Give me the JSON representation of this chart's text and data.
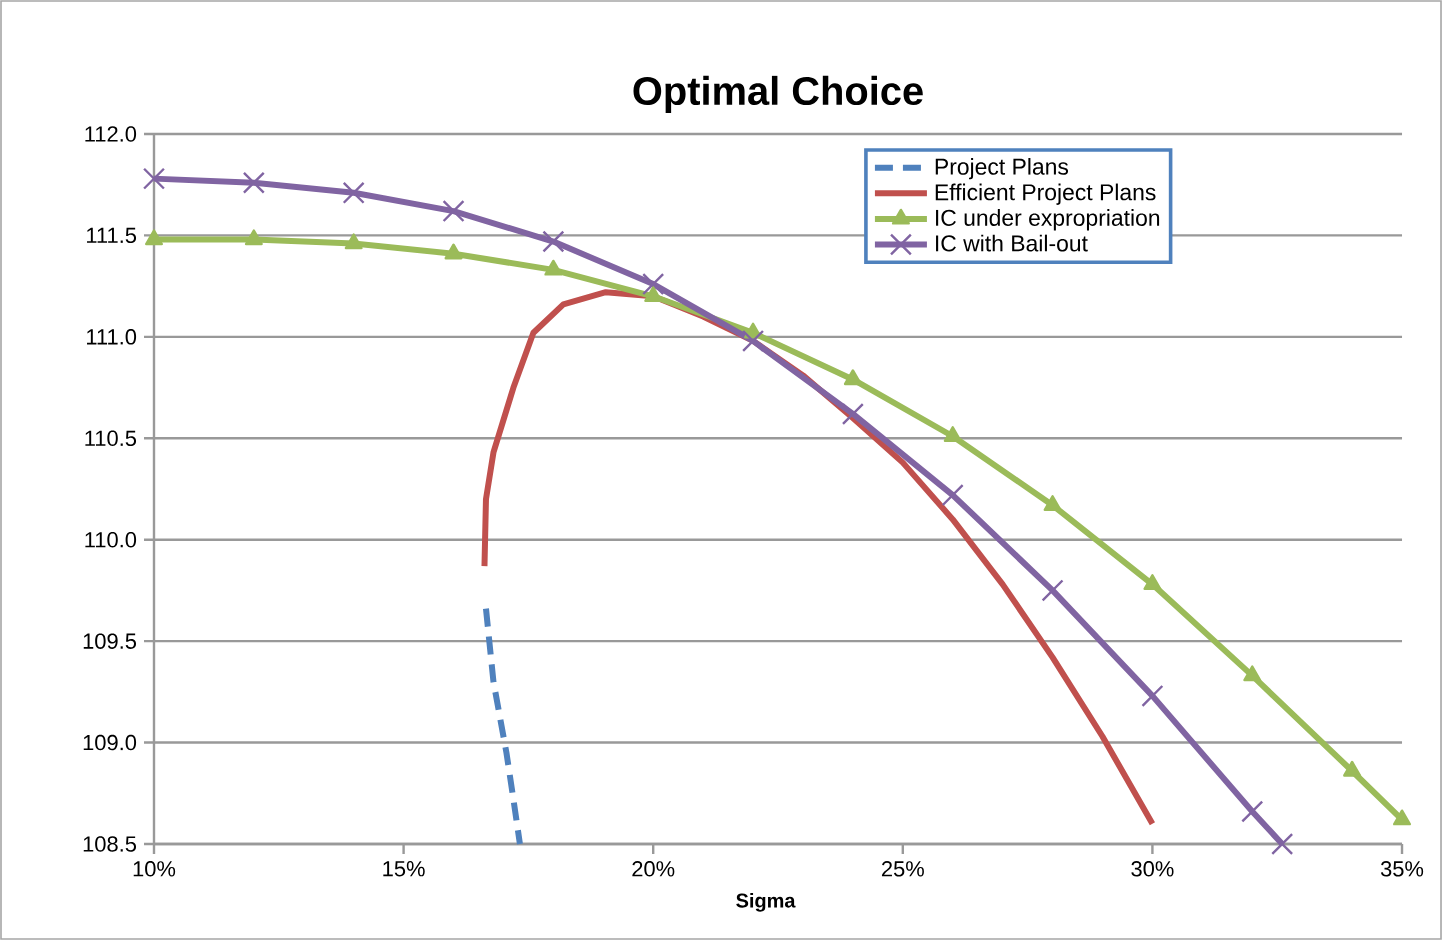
{
  "chart_data": {
    "type": "line",
    "title": "Optimal Choice",
    "xlabel": "Sigma",
    "xlim": [
      10,
      35
    ],
    "ylim": [
      108.5,
      112
    ],
    "xticks": [
      {
        "value": 10,
        "label": "10%"
      },
      {
        "value": 15,
        "label": "15%"
      },
      {
        "value": 20,
        "label": "20%"
      },
      {
        "value": 25,
        "label": "25%"
      },
      {
        "value": 30,
        "label": "30%"
      },
      {
        "value": 35,
        "label": "35%"
      }
    ],
    "yticks": [
      {
        "value": 108.5,
        "label": "108.5"
      },
      {
        "value": 109,
        "label": "109.0"
      },
      {
        "value": 109.5,
        "label": "109.5"
      },
      {
        "value": 110,
        "label": "110.0"
      },
      {
        "value": 110.5,
        "label": "110.5"
      },
      {
        "value": 111,
        "label": "111.0"
      },
      {
        "value": 111.5,
        "label": "111.5"
      },
      {
        "value": 112,
        "label": "112.0"
      }
    ],
    "grid": "y",
    "legend": "top right",
    "series": [
      {
        "name": "Project Plans",
        "color": "#4f81bd",
        "line_style": "dashed",
        "marker": "none",
        "x": [
          16.65,
          16.8,
          17.06,
          17.2,
          17.33
        ],
        "values": [
          109.66,
          109.3,
          108.95,
          108.72,
          108.5
        ]
      },
      {
        "name": "Efficient Project Plans",
        "color": "#c0504d",
        "line_style": "solid",
        "marker": "none",
        "x": [
          16.62,
          16.65,
          16.8,
          17.2,
          17.6,
          18.2,
          19.05,
          20,
          21,
          22,
          23,
          24,
          25,
          26,
          27,
          28,
          29,
          30
        ],
        "values": [
          109.87,
          110.2,
          110.43,
          110.75,
          111.02,
          111.16,
          111.22,
          111.2,
          111.1,
          110.98,
          110.81,
          110.6,
          110.38,
          110.1,
          109.78,
          109.42,
          109.03,
          108.6
        ]
      },
      {
        "name": "IC under expropriation",
        "color": "#9bbb59",
        "line_style": "solid",
        "marker": "triangle",
        "x": [
          10,
          12,
          14,
          16,
          18,
          20,
          22,
          24,
          26,
          28,
          30,
          32,
          34,
          35
        ],
        "values": [
          111.48,
          111.48,
          111.46,
          111.41,
          111.33,
          111.2,
          111.02,
          110.79,
          110.51,
          110.17,
          109.78,
          109.33,
          108.86,
          108.62
        ]
      },
      {
        "name": "IC with Bail-out",
        "color": "#8064a2",
        "line_style": "solid",
        "marker": "cross",
        "x": [
          10,
          12,
          14,
          16,
          18,
          20,
          22,
          24,
          26,
          28,
          30,
          32,
          32.6
        ],
        "values": [
          111.78,
          111.76,
          111.71,
          111.62,
          111.47,
          111.26,
          110.98,
          110.62,
          110.22,
          109.75,
          109.23,
          108.66,
          108.5
        ]
      }
    ]
  }
}
